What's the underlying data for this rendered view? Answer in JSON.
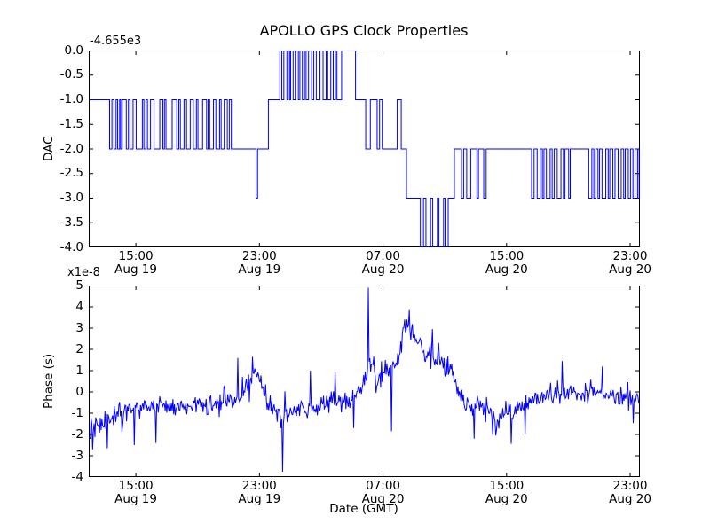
{
  "title": "APOLLO GPS Clock Properties",
  "xlabel": "Date (GMT)",
  "line_color": "#0000ff",
  "axis_color": "#000000",
  "background": "#ffffff",
  "xticks": [
    {
      "hour": 3,
      "time": "15:00",
      "date": "Aug 19"
    },
    {
      "hour": 11,
      "time": "23:00",
      "date": "Aug 19"
    },
    {
      "hour": 19,
      "time": "07:00",
      "date": "Aug 20"
    },
    {
      "hour": 27,
      "time": "15:00",
      "date": "Aug 20"
    },
    {
      "hour": 35,
      "time": "23:00",
      "date": "Aug 20"
    }
  ],
  "x_hours_range": [
    -0.05,
    35.63
  ],
  "chart_data": [
    {
      "type": "line",
      "subplot": "top",
      "ylabel": "DAC",
      "offset_text": "-4.655e3",
      "ylim": [
        -4.0,
        0.0
      ],
      "ytick_values": [
        0.0,
        -0.5,
        -1.0,
        -1.5,
        -2.0,
        -2.5,
        -3.0,
        -3.5,
        -4.0
      ],
      "ytick_labels": [
        "0.0",
        "-0.5",
        "-1.0",
        "-1.5",
        "-2.0",
        "-2.5",
        "-3.0",
        "-3.5",
        "-4.0"
      ],
      "style": "step",
      "step_points": [
        [
          0,
          -1
        ],
        [
          1.3,
          -2
        ],
        [
          1.45,
          -1
        ],
        [
          1.58,
          -2
        ],
        [
          1.72,
          -1
        ],
        [
          1.82,
          -2
        ],
        [
          1.95,
          -1
        ],
        [
          2.02,
          -2
        ],
        [
          2.12,
          -1
        ],
        [
          2.38,
          -2
        ],
        [
          2.52,
          -1
        ],
        [
          2.62,
          -2
        ],
        [
          2.82,
          -1
        ],
        [
          3.02,
          -2
        ],
        [
          3.42,
          -1
        ],
        [
          3.52,
          -2
        ],
        [
          3.65,
          -1
        ],
        [
          3.75,
          -2
        ],
        [
          3.95,
          -1
        ],
        [
          4.18,
          -2
        ],
        [
          4.55,
          -1
        ],
        [
          4.75,
          -2
        ],
        [
          4.85,
          -1
        ],
        [
          4.95,
          -2
        ],
        [
          5.35,
          -1
        ],
        [
          5.65,
          -2
        ],
        [
          5.78,
          -1
        ],
        [
          5.88,
          -2
        ],
        [
          6.12,
          -1
        ],
        [
          6.28,
          -2
        ],
        [
          6.52,
          -1
        ],
        [
          6.72,
          -2
        ],
        [
          6.92,
          -1
        ],
        [
          7.02,
          -2
        ],
        [
          7.32,
          -1
        ],
        [
          7.58,
          -2
        ],
        [
          7.68,
          -1
        ],
        [
          7.78,
          -2
        ],
        [
          8.02,
          -1
        ],
        [
          8.18,
          -2
        ],
        [
          8.42,
          -1
        ],
        [
          8.52,
          -2
        ],
        [
          8.72,
          -1
        ],
        [
          8.92,
          -2
        ],
        [
          9.05,
          -1
        ],
        [
          9.18,
          -2
        ],
        [
          10.78,
          -3
        ],
        [
          10.88,
          -2
        ],
        [
          11.58,
          -1
        ],
        [
          12.32,
          0
        ],
        [
          12.45,
          -1
        ],
        [
          12.58,
          0
        ],
        [
          12.78,
          -1
        ],
        [
          12.85,
          0
        ],
        [
          12.95,
          -1
        ],
        [
          13.02,
          0
        ],
        [
          13.18,
          -1
        ],
        [
          13.32,
          0
        ],
        [
          13.52,
          -1
        ],
        [
          13.62,
          0
        ],
        [
          13.78,
          -1
        ],
        [
          13.92,
          0
        ],
        [
          14.02,
          -1
        ],
        [
          14.18,
          0
        ],
        [
          14.38,
          -1
        ],
        [
          14.52,
          0
        ],
        [
          14.68,
          -1
        ],
        [
          14.92,
          0
        ],
        [
          15.12,
          -1
        ],
        [
          15.32,
          0
        ],
        [
          15.42,
          -1
        ],
        [
          15.62,
          0
        ],
        [
          15.78,
          -1
        ],
        [
          15.92,
          0
        ],
        [
          16.02,
          -1
        ],
        [
          16.32,
          0
        ],
        [
          17.22,
          -1
        ],
        [
          17.88,
          -2
        ],
        [
          18.18,
          -1
        ],
        [
          18.62,
          -2
        ],
        [
          18.78,
          -1
        ],
        [
          18.95,
          -2
        ],
        [
          19.92,
          -1
        ],
        [
          20.18,
          -2
        ],
        [
          20.52,
          -3
        ],
        [
          21.42,
          -4
        ],
        [
          21.62,
          -3
        ],
        [
          21.78,
          -4
        ],
        [
          22.08,
          -3
        ],
        [
          22.22,
          -4
        ],
        [
          22.52,
          -3
        ],
        [
          22.62,
          -4
        ],
        [
          22.92,
          -3
        ],
        [
          23.02,
          -4
        ],
        [
          23.22,
          -3
        ],
        [
          23.62,
          -2
        ],
        [
          24.08,
          -3
        ],
        [
          24.22,
          -2
        ],
        [
          24.42,
          -3
        ],
        [
          24.68,
          -2
        ],
        [
          25.08,
          -3
        ],
        [
          25.18,
          -2
        ],
        [
          25.52,
          -3
        ],
        [
          25.68,
          -2
        ],
        [
          28.62,
          -3
        ],
        [
          28.78,
          -2
        ],
        [
          28.98,
          -3
        ],
        [
          29.18,
          -2
        ],
        [
          29.32,
          -3
        ],
        [
          29.42,
          -2
        ],
        [
          29.58,
          -3
        ],
        [
          29.82,
          -2
        ],
        [
          29.95,
          -3
        ],
        [
          30.08,
          -2
        ],
        [
          30.28,
          -3
        ],
        [
          30.52,
          -2
        ],
        [
          30.68,
          -3
        ],
        [
          30.78,
          -2
        ],
        [
          31.02,
          -3
        ],
        [
          31.12,
          -2
        ],
        [
          32.32,
          -3
        ],
        [
          32.52,
          -2
        ],
        [
          32.65,
          -3
        ],
        [
          32.78,
          -2
        ],
        [
          32.92,
          -3
        ],
        [
          33.02,
          -2
        ],
        [
          33.18,
          -3
        ],
        [
          33.42,
          -2
        ],
        [
          33.58,
          -3
        ],
        [
          33.68,
          -2
        ],
        [
          33.88,
          -3
        ],
        [
          34.02,
          -2
        ],
        [
          34.22,
          -3
        ],
        [
          34.42,
          -2
        ],
        [
          34.58,
          -3
        ],
        [
          34.68,
          -2
        ],
        [
          34.88,
          -3
        ],
        [
          35.02,
          -2
        ],
        [
          35.18,
          -3
        ],
        [
          35.32,
          -2
        ],
        [
          35.48,
          -3
        ],
        [
          35.58,
          -2
        ]
      ]
    },
    {
      "type": "line",
      "subplot": "bottom",
      "ylabel": "Phase (s)",
      "multiplier_text": "x1e-8",
      "ylim": [
        -4,
        5
      ],
      "ytick_values": [
        5,
        4,
        3,
        2,
        1,
        0,
        -1,
        -2,
        -3,
        -4
      ],
      "ytick_labels": [
        "5",
        "4",
        "3",
        "2",
        "1",
        "0",
        "-1",
        "-2",
        "-3",
        "-4"
      ],
      "style": "noisy",
      "sample_step_hours": 0.05,
      "noise_sd": 0.35,
      "seed": 42,
      "envelope": [
        [
          0,
          -1.9
        ],
        [
          0.5,
          -1.55
        ],
        [
          1.0,
          -1.35
        ],
        [
          1.5,
          -1.15
        ],
        [
          2.0,
          -1.0
        ],
        [
          2.5,
          -0.85
        ],
        [
          3.0,
          -0.8
        ],
        [
          3.5,
          -0.75
        ],
        [
          4.0,
          -0.8
        ],
        [
          4.5,
          -0.65
        ],
        [
          5.0,
          -0.6
        ],
        [
          5.5,
          -0.7
        ],
        [
          6.0,
          -0.8
        ],
        [
          6.5,
          -0.7
        ],
        [
          7.0,
          -0.6
        ],
        [
          7.5,
          -0.7
        ],
        [
          8.0,
          -0.65
        ],
        [
          8.5,
          -0.6
        ],
        [
          9.0,
          -0.5
        ],
        [
          9.5,
          -0.3
        ],
        [
          10.0,
          0.0
        ],
        [
          10.4,
          0.6
        ],
        [
          10.7,
          1.0
        ],
        [
          11.0,
          0.7
        ],
        [
          11.3,
          0.1
        ],
        [
          11.6,
          -0.45
        ],
        [
          12.0,
          -1.0
        ],
        [
          12.4,
          -1.25
        ],
        [
          12.8,
          -1.1
        ],
        [
          13.2,
          -0.9
        ],
        [
          13.6,
          -0.85
        ],
        [
          14.0,
          -0.8
        ],
        [
          14.5,
          -0.7
        ],
        [
          15.0,
          -0.6
        ],
        [
          15.5,
          -0.45
        ],
        [
          16.0,
          -0.35
        ],
        [
          16.4,
          -0.55
        ],
        [
          16.8,
          -0.4
        ],
        [
          17.2,
          -0.15
        ],
        [
          17.6,
          0.1
        ],
        [
          17.9,
          0.6
        ],
        [
          18.1,
          1.4
        ],
        [
          18.3,
          1.3
        ],
        [
          18.5,
          0.45
        ],
        [
          18.7,
          0.7
        ],
        [
          19.0,
          0.9
        ],
        [
          19.4,
          1.0
        ],
        [
          19.8,
          1.1
        ],
        [
          20.1,
          1.6
        ],
        [
          20.35,
          2.9
        ],
        [
          20.6,
          3.2
        ],
        [
          20.8,
          2.9
        ],
        [
          21.1,
          2.5
        ],
        [
          21.5,
          2.1
        ],
        [
          22.0,
          1.9
        ],
        [
          22.4,
          1.5
        ],
        [
          22.8,
          1.3
        ],
        [
          23.2,
          1.2
        ],
        [
          23.6,
          0.7
        ],
        [
          24.0,
          -0.2
        ],
        [
          24.4,
          -0.75
        ],
        [
          24.8,
          -0.85
        ],
        [
          25.2,
          -0.7
        ],
        [
          25.6,
          -0.75
        ],
        [
          26.0,
          -1.0
        ],
        [
          26.4,
          -1.25
        ],
        [
          26.8,
          -1.1
        ],
        [
          27.2,
          -1.0
        ],
        [
          27.6,
          -0.9
        ],
        [
          28.0,
          -0.75
        ],
        [
          28.4,
          -0.5
        ],
        [
          28.8,
          -0.25
        ],
        [
          29.2,
          -0.1
        ],
        [
          29.6,
          -0.2
        ],
        [
          30.0,
          -0.15
        ],
        [
          30.5,
          -0.05
        ],
        [
          31.0,
          0.0
        ],
        [
          31.5,
          -0.1
        ],
        [
          32.0,
          -0.05
        ],
        [
          32.5,
          0.05
        ],
        [
          33.0,
          -0.05
        ],
        [
          33.5,
          -0.15
        ],
        [
          34.0,
          -0.2
        ],
        [
          34.5,
          -0.1
        ],
        [
          35.0,
          -0.15
        ],
        [
          35.63,
          -0.35
        ]
      ],
      "spikes": [
        [
          0.2,
          -2.7
        ],
        [
          1.15,
          -2.65
        ],
        [
          2.9,
          -2.5
        ],
        [
          4.3,
          -2.4
        ],
        [
          9.6,
          1.6
        ],
        [
          10.55,
          1.65
        ],
        [
          12.52,
          -3.75
        ],
        [
          14.3,
          1.0
        ],
        [
          17.1,
          -1.7
        ],
        [
          18.05,
          4.9
        ],
        [
          19.55,
          -1.85
        ],
        [
          20.7,
          3.85
        ],
        [
          22.6,
          2.3
        ],
        [
          24.9,
          -2.2
        ],
        [
          26.3,
          -2.05
        ],
        [
          28.2,
          -2.0
        ],
        [
          30.6,
          1.45
        ],
        [
          33.2,
          1.2
        ]
      ]
    }
  ]
}
